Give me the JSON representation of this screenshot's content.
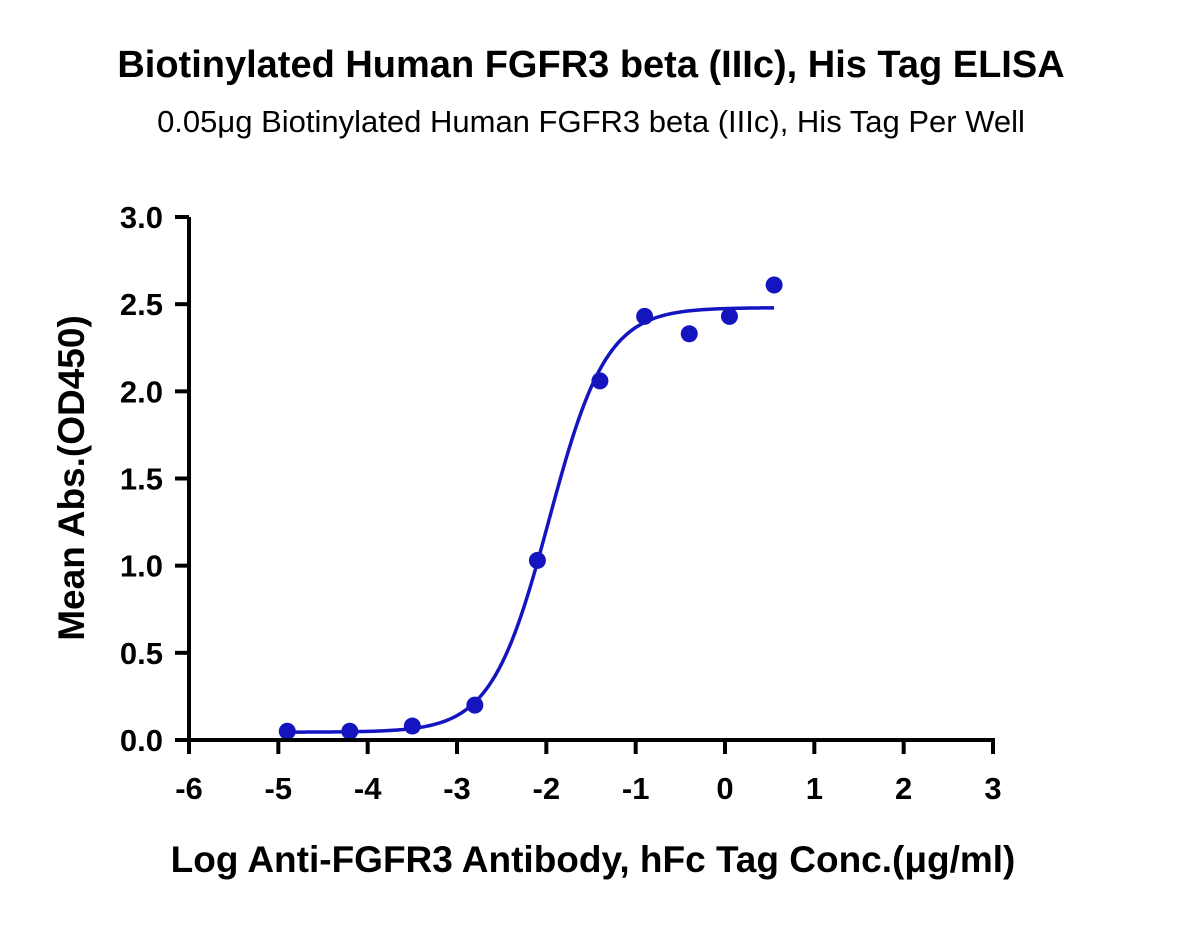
{
  "chart_data": {
    "type": "scatter",
    "title": "Biotinylated Human FGFR3 beta (IIIc), His Tag ELISA",
    "subtitle": "0.05μg Biotinylated Human FGFR3 beta (IIIc), His Tag Per Well",
    "xlabel": "Log Anti-FGFR3 Antibody, hFc Tag Conc.(μg/ml)",
    "ylabel": "Mean Abs.(OD450)",
    "xlim": [
      -6,
      3
    ],
    "ylim": [
      0,
      3
    ],
    "xticks": [
      "-6",
      "-5",
      "-4",
      "-3",
      "-2",
      "-1",
      "0",
      "1",
      "2",
      "3"
    ],
    "yticks": [
      "0.0",
      "0.5",
      "1.0",
      "1.5",
      "2.0",
      "2.5",
      "3.0"
    ],
    "grid": false,
    "color": "#1515c0",
    "series": [
      {
        "points": [
          {
            "x": -4.9,
            "y": 0.05
          },
          {
            "x": -4.2,
            "y": 0.05
          },
          {
            "x": -3.5,
            "y": 0.08
          },
          {
            "x": -2.8,
            "y": 0.2
          },
          {
            "x": -2.1,
            "y": 1.03
          },
          {
            "x": -1.4,
            "y": 2.06
          },
          {
            "x": -0.9,
            "y": 2.43
          },
          {
            "x": -0.4,
            "y": 2.33
          },
          {
            "x": 0.05,
            "y": 2.43
          },
          {
            "x": 0.55,
            "y": 2.61
          }
        ],
        "fit": {
          "model": "4PL",
          "bottom": 0.045,
          "top": 2.48,
          "logEC50": -1.97,
          "hill": 1.35,
          "xrange": [
            -4.9,
            0.55
          ]
        }
      }
    ]
  }
}
